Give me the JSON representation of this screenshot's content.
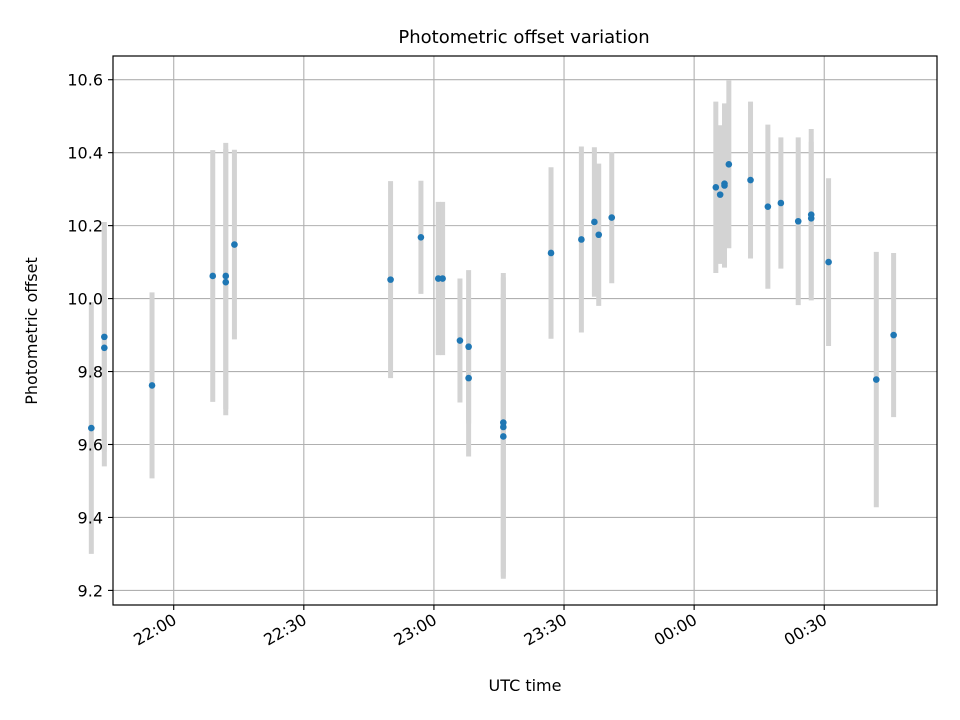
{
  "chart_data": {
    "type": "scatter",
    "title": "Photometric offset variation",
    "xlabel": "UTC time",
    "ylabel": "Photometric offset",
    "x_axis": "time (UTC, 2-day span around midnight)",
    "xlim": [
      "21:46",
      "00:56"
    ],
    "ylim": [
      9.16,
      10.665
    ],
    "yticks": [
      "9.2",
      "9.4",
      "9.6",
      "9.8",
      "10.0",
      "10.2",
      "10.4",
      "10.6"
    ],
    "xticks": [
      "22:00",
      "22:30",
      "23:00",
      "23:30",
      "00:00",
      "00:30"
    ],
    "grid": true,
    "errorbar_color": "#d3d3d3",
    "marker_color": "#1f77b4",
    "series": [
      {
        "points": [
          {
            "time": "21:41",
            "y": 9.645,
            "err": 0.345
          },
          {
            "time": "21:44",
            "y": 9.895,
            "err": 0.315
          },
          {
            "time": "21:44",
            "y": 9.865,
            "err": 0.325
          },
          {
            "time": "21:55",
            "y": 9.762,
            "err": 0.255
          },
          {
            "time": "22:09",
            "y": 10.062,
            "err": 0.345
          },
          {
            "time": "22:12",
            "y": 10.045,
            "err": 0.365
          },
          {
            "time": "22:12",
            "y": 10.062,
            "err": 0.365
          },
          {
            "time": "22:14",
            "y": 10.148,
            "err": 0.26
          },
          {
            "time": "22:50",
            "y": 10.052,
            "err": 0.27
          },
          {
            "time": "22:57",
            "y": 10.168,
            "err": 0.155
          },
          {
            "time": "23:01",
            "y": 10.055,
            "err": 0.21
          },
          {
            "time": "23:02",
            "y": 10.055,
            "err": 0.21
          },
          {
            "time": "23:06",
            "y": 9.885,
            "err": 0.17
          },
          {
            "time": "23:08",
            "y": 9.868,
            "err": 0.21
          },
          {
            "time": "23:08",
            "y": 9.782,
            "err": 0.215
          },
          {
            "time": "23:16",
            "y": 9.66,
            "err": 0.41
          },
          {
            "time": "23:16",
            "y": 9.622,
            "err": 0.39
          },
          {
            "time": "23:16",
            "y": 9.648,
            "err": 0.41
          },
          {
            "time": "23:27",
            "y": 10.125,
            "err": 0.235
          },
          {
            "time": "23:34",
            "y": 10.162,
            "err": 0.255
          },
          {
            "time": "23:37",
            "y": 10.21,
            "err": 0.205
          },
          {
            "time": "23:38",
            "y": 10.175,
            "err": 0.195
          },
          {
            "time": "23:41",
            "y": 10.222,
            "err": 0.18
          },
          {
            "time": "00:05",
            "y": 10.305,
            "err": 0.235
          },
          {
            "time": "00:06",
            "y": 10.285,
            "err": 0.19
          },
          {
            "time": "00:07",
            "y": 10.31,
            "err": 0.225
          },
          {
            "time": "00:07",
            "y": 10.315,
            "err": 0.215
          },
          {
            "time": "00:08",
            "y": 10.368,
            "err": 0.23
          },
          {
            "time": "00:13",
            "y": 10.325,
            "err": 0.215
          },
          {
            "time": "00:17",
            "y": 10.252,
            "err": 0.225
          },
          {
            "time": "00:20",
            "y": 10.262,
            "err": 0.18
          },
          {
            "time": "00:24",
            "y": 10.212,
            "err": 0.23
          },
          {
            "time": "00:27",
            "y": 10.22,
            "err": 0.21
          },
          {
            "time": "00:27",
            "y": 10.23,
            "err": 0.235
          },
          {
            "time": "00:31",
            "y": 10.1,
            "err": 0.23
          },
          {
            "time": "00:42",
            "y": 9.778,
            "err": 0.35
          },
          {
            "time": "00:46",
            "y": 9.9,
            "err": 0.225
          }
        ]
      }
    ]
  }
}
